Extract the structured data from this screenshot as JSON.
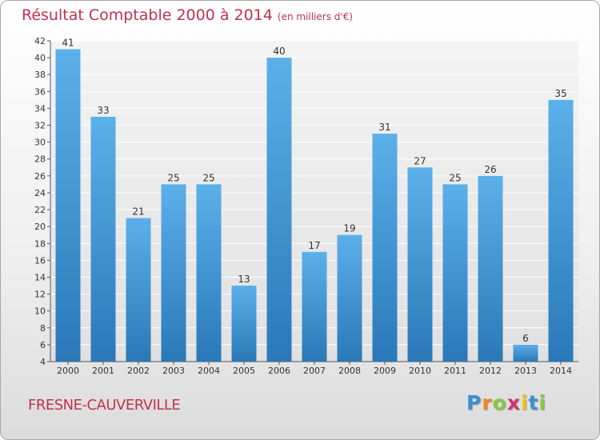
{
  "header": {
    "title": "Résultat Comptable 2000 à 2014",
    "subtitle": "(en milliers d'€)"
  },
  "footer": {
    "city": "FRESNE-CAUVERVILLE",
    "logo_letters": [
      "P",
      "r",
      "o",
      "x",
      "i",
      "t",
      "i"
    ],
    "logo_colors": [
      "#3b8fd4",
      "#f08a1c",
      "#8cc63f",
      "#d6316f",
      "#f2c01e",
      "#3b8fd4",
      "#8cc63f"
    ]
  },
  "chart_data": {
    "type": "bar",
    "title": "Résultat Comptable 2000 à 2014",
    "unit": "(en milliers d'€)",
    "xlabel": "",
    "ylabel": "",
    "categories": [
      "2000",
      "2001",
      "2002",
      "2003",
      "2004",
      "2005",
      "2006",
      "2007",
      "2008",
      "2009",
      "2010",
      "2011",
      "2012",
      "2013",
      "2014"
    ],
    "values": [
      41,
      33,
      21,
      25,
      25,
      13,
      40,
      17,
      19,
      31,
      27,
      25,
      26,
      6,
      35
    ],
    "ylim": [
      4,
      42
    ],
    "yticks": [
      4,
      6,
      8,
      10,
      12,
      14,
      16,
      18,
      20,
      22,
      24,
      26,
      28,
      30,
      32,
      34,
      36,
      38,
      40,
      42
    ],
    "grid": true,
    "bar_color": "#4b9fe0"
  }
}
